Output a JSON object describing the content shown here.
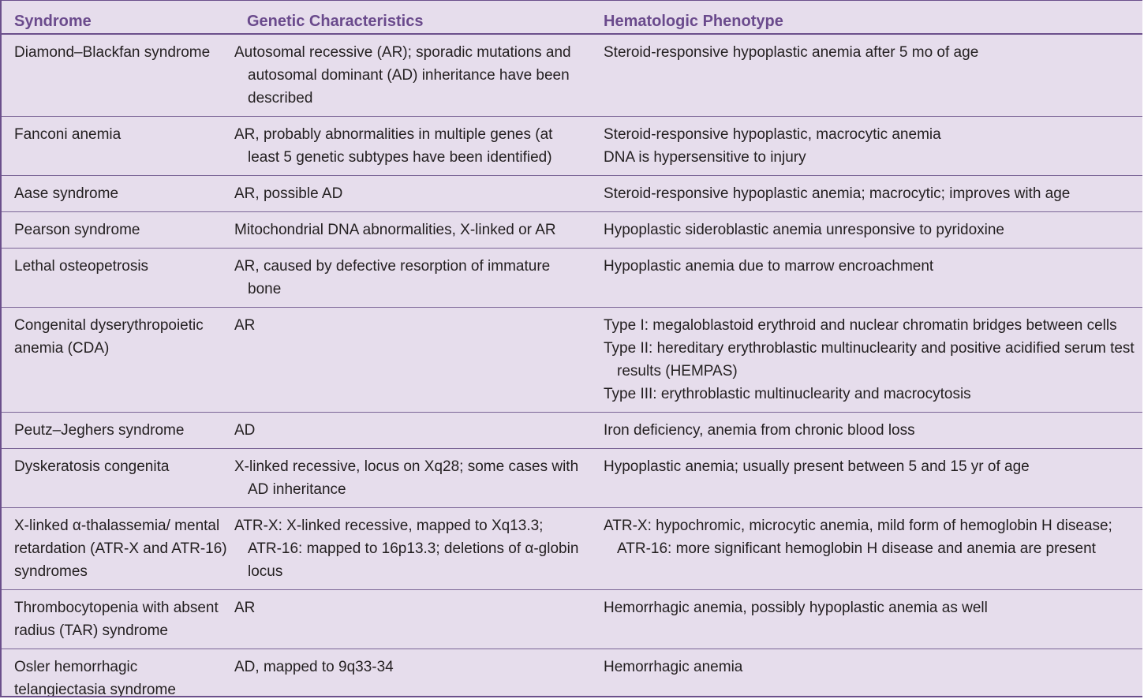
{
  "headers": [
    "Syndrome",
    "Genetic Characteristics",
    "Hematologic Phenotype"
  ],
  "rows": [
    {
      "syndrome": "Diamond–Blackfan syndrome",
      "genetic": "Autosomal recessive (AR); sporadic mutations and autosomal dominant (AD) inheritance have been described",
      "phenotype": [
        "Steroid-responsive hypoplastic anemia after 5 mo of age"
      ]
    },
    {
      "syndrome": "Fanconi anemia",
      "genetic": "AR, probably abnormalities in multiple genes (at least 5 genetic subtypes have been identified)",
      "phenotype": [
        "Steroid-responsive hypoplastic, macrocytic anemia",
        "DNA is hypersensitive to injury"
      ]
    },
    {
      "syndrome": "Aase syndrome",
      "genetic": "AR, possible AD",
      "phenotype": [
        "Steroid-responsive hypoplastic anemia; macrocytic; improves with age"
      ]
    },
    {
      "syndrome": "Pearson syndrome",
      "genetic": "Mitochondrial DNA abnormalities, X-linked or AR",
      "phenotype": [
        "Hypoplastic sideroblastic anemia unresponsive to pyridoxine"
      ]
    },
    {
      "syndrome": "Lethal osteopetrosis",
      "genetic": "AR, caused by defective resorption of immature bone",
      "phenotype": [
        "Hypoplastic anemia due to marrow encroachment"
      ]
    },
    {
      "syndrome": "Congenital dyserythropoietic anemia (CDA)",
      "genetic": "AR",
      "phenotype": [
        "Type I: megaloblastoid erythroid and nuclear chromatin bridges between cells",
        "Type II: hereditary erythroblastic multinuclearity and positive acidified serum test results (HEMPAS)",
        "Type III: erythroblastic multinuclearity and macrocytosis"
      ]
    },
    {
      "syndrome": "Peutz–Jeghers syndrome",
      "genetic": "AD",
      "phenotype": [
        "Iron deficiency, anemia from chronic blood loss"
      ]
    },
    {
      "syndrome": "Dyskeratosis congenita",
      "genetic": "X-linked recessive, locus on Xq28; some cases with AD inheritance",
      "phenotype": [
        "Hypoplastic anemia; usually present between 5 and 15 yr of age"
      ]
    },
    {
      "syndrome": "X-linked α-thalassemia/ mental retardation (ATR-X and ATR-16) syndromes",
      "genetic": "ATR-X: X-linked recessive, mapped to Xq13.3; ATR-16: mapped to 16p13.3; deletions of α-globin locus",
      "phenotype": [
        "ATR-X: hypochromic, microcytic anemia, mild form of hemoglobin H disease; ATR-16: more significant hemoglobin H disease and anemia are present"
      ]
    },
    {
      "syndrome": "Thrombocytopenia with absent radius (TAR) syndrome",
      "genetic": "AR",
      "phenotype": [
        "Hemorrhagic anemia, possibly hypoplastic anemia as well"
      ]
    },
    {
      "syndrome": "Osler hemorrhagic telangiectasia syndrome",
      "genetic": "AD, mapped to 9q33-34",
      "phenotype": [
        "Hemorrhagic anemia"
      ]
    }
  ]
}
